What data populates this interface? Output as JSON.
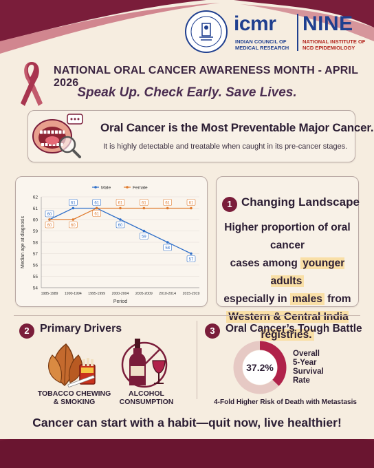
{
  "header": {
    "icmr_logo": "icmr",
    "icmr_sub": "INDIAN COUNCIL OF MEDICAL RESEARCH",
    "nine_logo": "NINE",
    "nine_sub": "NATIONAL INSTITUTE OF NCD EPIDEMIOLOGY",
    "title": "NATIONAL ORAL CANCER AWARENESS MONTH - APRIL 2026",
    "tagline": "Speak Up. Check Early. Save Lives."
  },
  "preventable": {
    "title": "Oral Cancer is the Most Preventable Major Cancer.",
    "subtitle": "It is highly detectable and treatable when caught in its pre-cancer stages."
  },
  "chart_data": {
    "type": "line",
    "categories": [
      "1985-1989",
      "1990-1994",
      "1995-1999",
      "2000-2004",
      "2005-2009",
      "2010-2014",
      "2015-2019"
    ],
    "series": [
      {
        "name": "Male",
        "color": "#2f6fc9",
        "values": [
          60,
          61,
          61,
          60,
          59,
          58,
          57
        ]
      },
      {
        "name": "Female",
        "color": "#e07b2e",
        "values": [
          60,
          60,
          61,
          61,
          61,
          61,
          61
        ]
      }
    ],
    "xlabel": "Period",
    "ylabel": "Median age at diagnosis",
    "ylim": [
      54,
      62
    ],
    "yticks": [
      "54",
      "55",
      "56",
      "57",
      "58",
      "59",
      "60",
      "61",
      "62"
    ],
    "grid": true,
    "legend": "top"
  },
  "landscape": {
    "number": "1",
    "heading": "Changing Landscape",
    "line1": "Higher proportion of oral cancer",
    "line2_pre": "cases among ",
    "line2_hl": "younger adults",
    "line3_pre": "especially in ",
    "line3_hl": "males",
    "line3_post": " from",
    "line4_hl": "Western & Central India registries."
  },
  "drivers": {
    "number": "2",
    "heading": "Primary Drivers",
    "tobacco_line1": "TOBACCO CHEWING",
    "tobacco_line2": "& SMOKING",
    "alcohol_line1": "ALCOHOL",
    "alcohol_line2": "CONSUMPTION"
  },
  "battle": {
    "number": "3",
    "heading": "Oral Cancer’s Tough Battle",
    "survival_percent": 37.2,
    "survival_value": "37.2%",
    "label_line1": "Overall",
    "label_line2": "5-Year",
    "label_line3": "Survival",
    "label_line4": "Rate",
    "metastasis": "4-Fold Higher Risk of Death with Metastasis",
    "accent": "#b0224a",
    "ring_bg": "#e6c9c4"
  },
  "footer": {
    "text": "Cancer can start with a habit—quit now, live healthier!"
  },
  "colors": {
    "maroon": "#7a1d3a",
    "cream": "#f6ede0",
    "navy": "#1f3f8f"
  }
}
